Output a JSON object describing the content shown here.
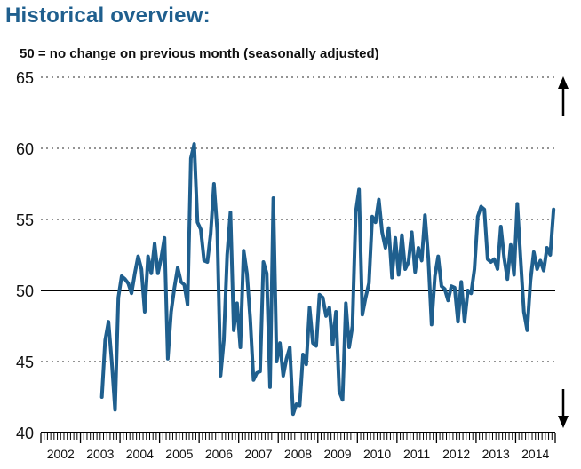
{
  "page": {
    "title": "Historical overview:",
    "subtitle": "50 = no change on previous month (seasonally adjusted)"
  },
  "chart_data": {
    "type": "line",
    "title": "Historical overview:",
    "subtitle": "50 = no change on previous month (seasonally adjusted)",
    "xlabel": "",
    "ylabel": "",
    "ylim": [
      40,
      65
    ],
    "yticks": [
      40,
      45,
      50,
      55,
      60,
      65
    ],
    "xticks": [
      "2002",
      "2003",
      "2004",
      "2005",
      "2006",
      "2007",
      "2008",
      "2009",
      "2010",
      "2011",
      "2012",
      "2013",
      "2014"
    ],
    "reference_line": 50,
    "grid": "horizontal dotted",
    "color": "#1f5f8e",
    "start": "2003-07",
    "series": [
      {
        "name": "",
        "values": [
          42.5,
          46.5,
          47.8,
          45.0,
          41.6,
          49.5,
          51.0,
          50.8,
          50.5,
          49.8,
          51.2,
          52.4,
          51.5,
          48.5,
          52.4,
          51.2,
          53.3,
          51.2,
          52.3,
          53.7,
          45.2,
          48.5,
          50.2,
          51.6,
          50.6,
          50.4,
          49.0,
          59.3,
          60.3,
          54.8,
          54.3,
          52.1,
          52.0,
          54.0,
          57.5,
          54.2,
          44.0,
          46.5,
          52.5,
          55.5,
          47.2,
          49.1,
          46.0,
          52.8,
          51.2,
          48.0,
          43.7,
          44.2,
          44.3,
          52.0,
          51.2,
          43.2,
          56.5,
          45.0,
          46.3,
          44.0,
          45.2,
          46.0,
          41.3,
          42.0,
          41.9,
          45.5,
          44.8,
          48.8,
          46.3,
          46.1,
          49.7,
          49.5,
          48.2,
          48.8,
          46.2,
          48.5,
          42.9,
          42.3,
          49.1,
          46.0,
          47.5,
          55.5,
          57.1,
          48.3,
          49.5,
          50.5,
          55.2,
          54.8,
          56.4,
          54.1,
          53.0,
          54.4,
          50.9,
          53.7,
          51.1,
          53.9,
          51.5,
          52.0,
          54.1,
          51.3,
          53.0,
          52.1,
          55.3,
          52.3,
          47.6,
          51.0,
          52.4,
          50.3,
          50.1,
          49.3,
          50.3,
          50.2,
          47.8,
          50.6,
          47.8,
          50.0,
          49.8,
          51.5,
          55.2,
          55.9,
          55.7,
          52.2,
          52.0,
          52.2,
          51.5,
          54.5,
          52.3,
          50.8,
          53.2,
          51.1,
          56.1,
          52.2,
          48.5,
          47.2,
          50.7,
          52.7,
          51.5,
          52.1,
          51.4,
          53.0,
          52.5,
          55.7
        ]
      }
    ]
  }
}
